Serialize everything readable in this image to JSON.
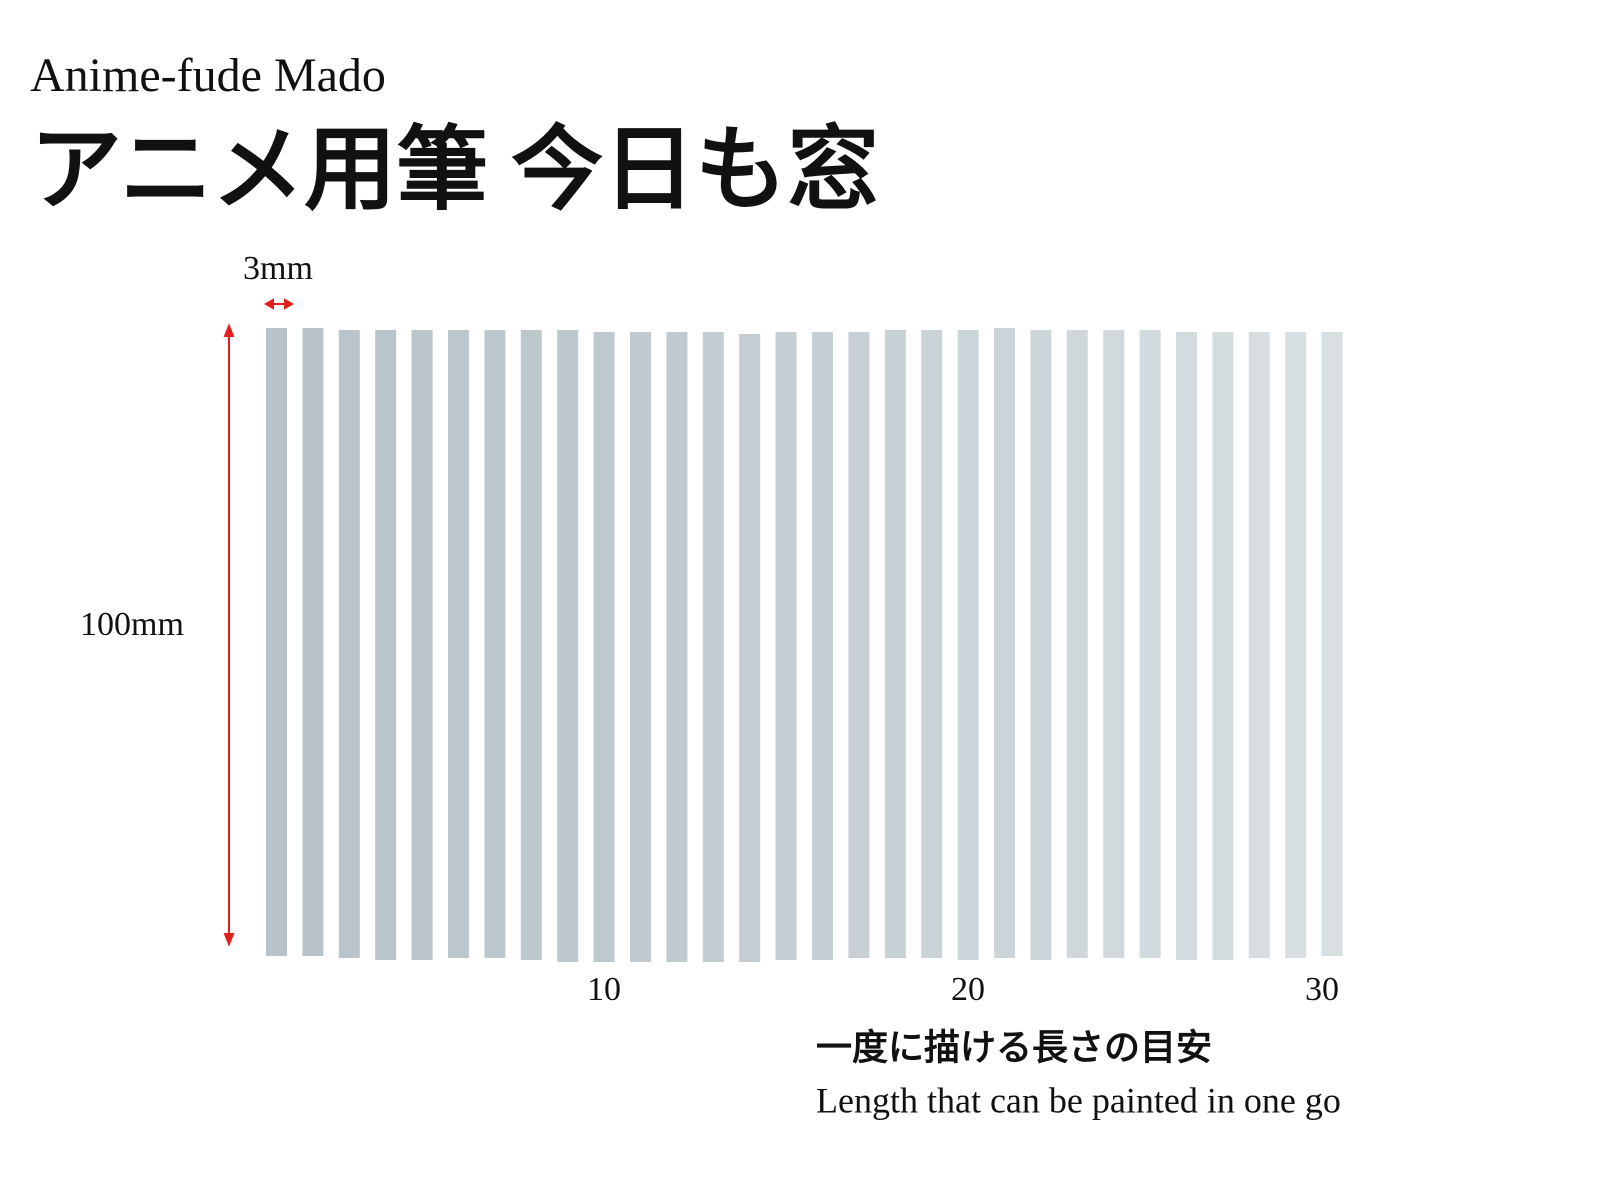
{
  "header": {
    "brand": "Anime-fude Mado",
    "title": "アニメ用筆 今日も窓"
  },
  "dimensions": {
    "width_label": "3mm",
    "height_label": "100mm"
  },
  "stroke_count_labels": [
    "10",
    "20",
    "30"
  ],
  "caption": {
    "japanese": "一度に描ける長さの目安",
    "english": "Length that can be painted in one go"
  }
}
